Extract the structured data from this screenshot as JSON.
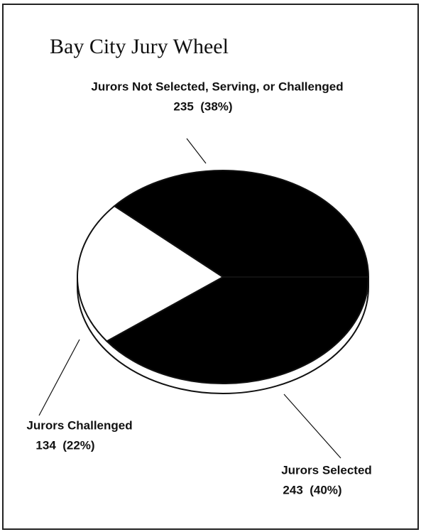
{
  "chart_data": {
    "type": "pie",
    "title": "Bay City Jury Wheel",
    "categories": [
      "Jurors Selected",
      "Jurors Challenged",
      "Jurors Not Selected, Serving, or Challenged"
    ],
    "values": [
      243,
      134,
      235
    ],
    "value_labels": [
      "243  (40%)",
      "134  (22%)",
      "235  (38%)"
    ],
    "colors": [
      "#000000",
      "#ffffff",
      "#000000"
    ]
  }
}
